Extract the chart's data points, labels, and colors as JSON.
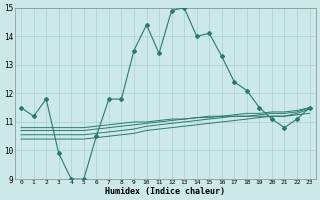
{
  "xlabel": "Humidex (Indice chaleur)",
  "ylabel": "",
  "xlim": [
    -0.5,
    23.5
  ],
  "ylim": [
    9,
    15
  ],
  "yticks": [
    9,
    10,
    11,
    12,
    13,
    14,
    15
  ],
  "xticks": [
    0,
    1,
    2,
    3,
    4,
    5,
    6,
    7,
    8,
    9,
    10,
    11,
    12,
    13,
    14,
    15,
    16,
    17,
    18,
    19,
    20,
    21,
    22,
    23
  ],
  "bg_color": "#cce8e8",
  "grid_color": "#aad0d0",
  "line_color": "#2a7a6e",
  "series_main": {
    "x": [
      0,
      1,
      2,
      3,
      4,
      5,
      6,
      7,
      8,
      9,
      10,
      11,
      12,
      13,
      14,
      15,
      16,
      17,
      18,
      19,
      20,
      21,
      22,
      23
    ],
    "y": [
      11.5,
      11.2,
      11.8,
      9.9,
      9.0,
      9.0,
      10.5,
      11.8,
      11.8,
      13.5,
      14.4,
      13.4,
      14.9,
      15.0,
      14.0,
      14.1,
      13.3,
      12.4,
      12.1,
      11.5,
      11.1,
      10.8,
      11.1,
      11.5
    ]
  },
  "series_flat": [
    {
      "x": [
        0,
        1,
        2,
        3,
        4,
        5,
        6,
        7,
        8,
        9,
        10,
        11,
        12,
        13,
        14,
        15,
        16,
        17,
        18,
        19,
        20,
        21,
        22,
        23
      ],
      "y": [
        10.8,
        10.8,
        10.8,
        10.8,
        10.8,
        10.8,
        10.85,
        10.9,
        10.95,
        11.0,
        11.0,
        11.05,
        11.1,
        11.1,
        11.15,
        11.15,
        11.2,
        11.2,
        11.2,
        11.2,
        11.2,
        11.2,
        11.25,
        11.3
      ]
    },
    {
      "x": [
        0,
        1,
        2,
        3,
        4,
        5,
        6,
        7,
        8,
        9,
        10,
        11,
        12,
        13,
        14,
        15,
        16,
        17,
        18,
        19,
        20,
        21,
        22,
        23
      ],
      "y": [
        10.7,
        10.7,
        10.7,
        10.7,
        10.7,
        10.7,
        10.75,
        10.8,
        10.85,
        10.9,
        10.95,
        11.0,
        11.05,
        11.1,
        11.15,
        11.2,
        11.2,
        11.25,
        11.3,
        11.3,
        11.35,
        11.35,
        11.4,
        11.5
      ]
    },
    {
      "x": [
        0,
        1,
        2,
        3,
        4,
        5,
        6,
        7,
        8,
        9,
        10,
        11,
        12,
        13,
        14,
        15,
        16,
        17,
        18,
        19,
        20,
        21,
        22,
        23
      ],
      "y": [
        10.55,
        10.55,
        10.55,
        10.55,
        10.55,
        10.55,
        10.6,
        10.65,
        10.7,
        10.75,
        10.85,
        10.9,
        10.95,
        11.0,
        11.05,
        11.1,
        11.15,
        11.2,
        11.2,
        11.25,
        11.3,
        11.3,
        11.35,
        11.5
      ]
    },
    {
      "x": [
        0,
        1,
        2,
        3,
        4,
        5,
        6,
        7,
        8,
        9,
        10,
        11,
        12,
        13,
        14,
        15,
        16,
        17,
        18,
        19,
        20,
        21,
        22,
        23
      ],
      "y": [
        10.4,
        10.4,
        10.4,
        10.4,
        10.4,
        10.4,
        10.45,
        10.5,
        10.55,
        10.6,
        10.7,
        10.75,
        10.8,
        10.85,
        10.9,
        10.95,
        11.0,
        11.05,
        11.1,
        11.15,
        11.2,
        11.2,
        11.3,
        11.45
      ]
    }
  ]
}
